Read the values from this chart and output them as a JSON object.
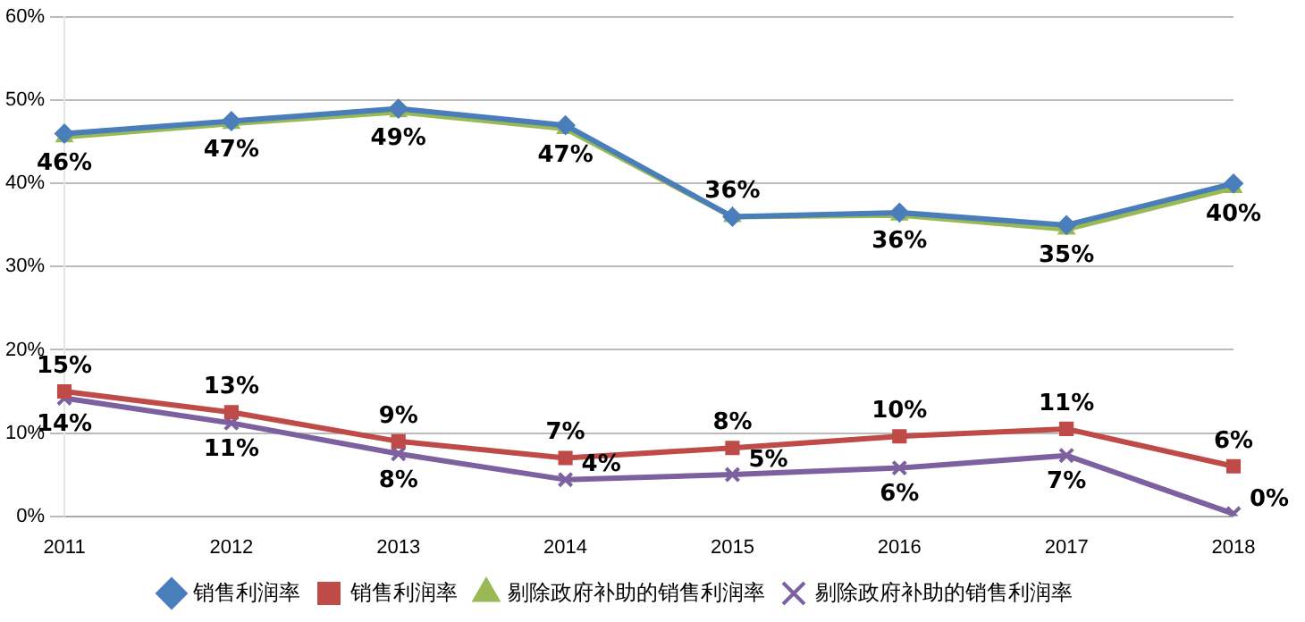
{
  "chart_data": {
    "type": "line",
    "categories": [
      "2011",
      "2012",
      "2013",
      "2014",
      "2015",
      "2016",
      "2017",
      "2018"
    ],
    "ylim": [
      0,
      60
    ],
    "yticks": [
      {
        "value": 0,
        "label": "0%"
      },
      {
        "value": 10,
        "label": "10%"
      },
      {
        "value": 20,
        "label": "20%"
      },
      {
        "value": 30,
        "label": "30%"
      },
      {
        "value": 40,
        "label": "40%"
      },
      {
        "value": 50,
        "label": "50%"
      },
      {
        "value": 60,
        "label": "60%"
      }
    ],
    "grid": "y",
    "legend": "bottom",
    "series": [
      {
        "name": "销售利润率",
        "color": "#4a7ebb",
        "marker": "diamond",
        "values": [
          46,
          47.5,
          49,
          47,
          36,
          36.5,
          35,
          40
        ]
      },
      {
        "name": "销售利润率",
        "color": "#be4b48",
        "marker": "square",
        "values": [
          15,
          12.5,
          9,
          7,
          8.2,
          9.6,
          10.5,
          6
        ],
        "value_labels": [
          "15%",
          "13%",
          "9%",
          "7%",
          "8%",
          "10%",
          "11%",
          "6%"
        ]
      },
      {
        "name": "剔除政府补助的销售利润率",
        "color": "#98b954",
        "marker": "triangle",
        "values": [
          45.6,
          47.2,
          48.6,
          46.6,
          36,
          36.2,
          34.5,
          39.5
        ],
        "value_labels": [
          "46%",
          "47%",
          "49%",
          "47%",
          "36%",
          "36%",
          "35%",
          "40%"
        ]
      },
      {
        "name": "剔除政府补助的销售利润率",
        "color": "#7d60a0",
        "marker": "cross",
        "values": [
          14.2,
          11.2,
          7.5,
          4.4,
          5,
          5.8,
          7.3,
          0.3
        ],
        "value_labels": [
          "14%",
          "11%",
          "8%",
          "4%",
          "5%",
          "6%",
          "7%",
          "0%"
        ]
      }
    ]
  }
}
